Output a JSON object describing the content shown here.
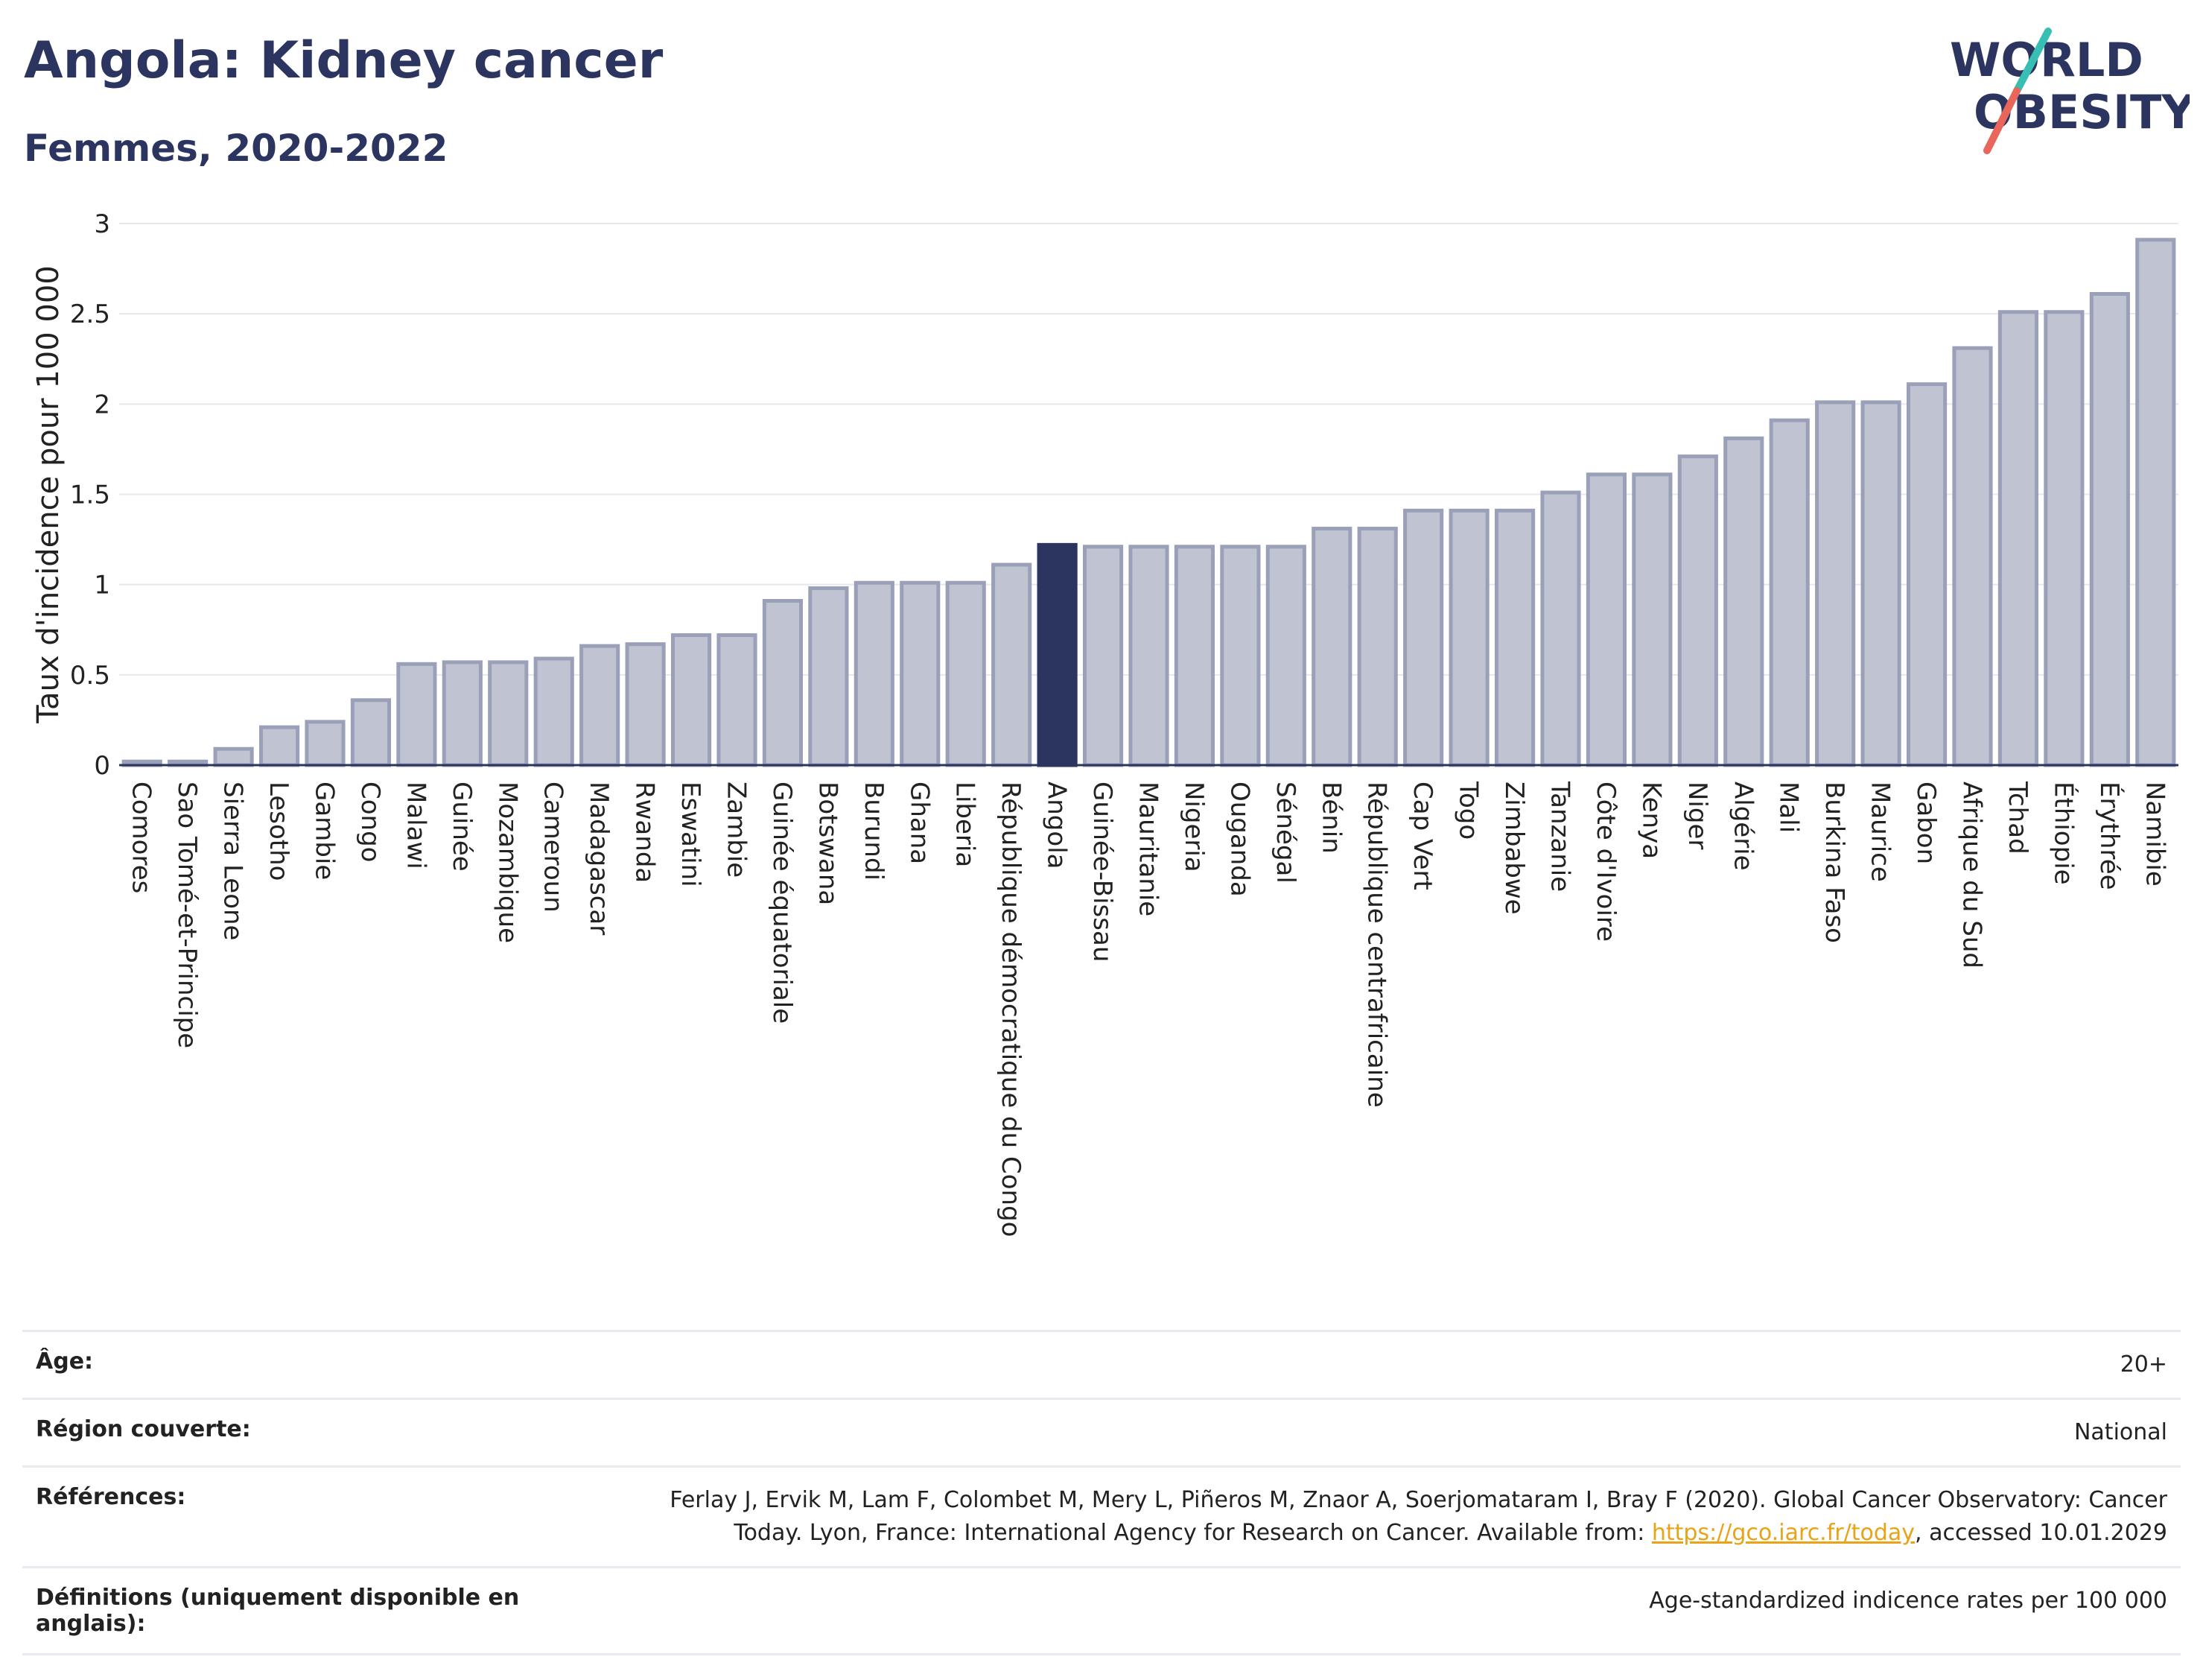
{
  "header": {
    "title": "Angola: Kidney cancer",
    "subtitle": "Femmes, 2020-2022"
  },
  "logo": {
    "line1": "WORLD",
    "line2": "OBESITY"
  },
  "colors": {
    "bar": "#bfc3d2",
    "bar_stroke": "#9aa0b8",
    "highlight": "#2b3560",
    "text": "#2b3560"
  },
  "chart_data": {
    "type": "bar",
    "ylabel": "Taux d'incidence pour 100 000",
    "xlabel": "",
    "ylim": [
      0,
      3
    ],
    "yticks": [
      "0",
      "0.5",
      "1",
      "1.5",
      "2",
      "2.5",
      "3"
    ],
    "highlight": "Angola",
    "grid": true,
    "categories": [
      "Comores",
      "Sao Tomé-et-Principe",
      "Sierra Leone",
      "Lesotho",
      "Gambie",
      "Congo",
      "Malawi",
      "Guinée",
      "Mozambique",
      "Cameroun",
      "Madagascar",
      "Rwanda",
      "Eswatini",
      "Zambie",
      "Guinée équatoriale",
      "Botswana",
      "Burundi",
      "Ghana",
      "Liberia",
      "République démocratique du Congo",
      "Angola",
      "Guinée-Bissau",
      "Mauritanie",
      "Nigeria",
      "Ouganda",
      "Sénégal",
      "Bénin",
      "République centrafricaine",
      "Cap Vert",
      "Togo",
      "Zimbabwe",
      "Tanzanie",
      "Côte d'Ivoire",
      "Kenya",
      "Niger",
      "Algérie",
      "Mali",
      "Burkina Faso",
      "Maurice",
      "Gabon",
      "Afrique du Sud",
      "Tchad",
      "Éthiopie",
      "Érythrée",
      "Namibie"
    ],
    "values": [
      0.02,
      0.02,
      0.09,
      0.21,
      0.24,
      0.36,
      0.56,
      0.57,
      0.57,
      0.59,
      0.66,
      0.67,
      0.72,
      0.72,
      0.91,
      0.98,
      1.01,
      1.01,
      1.01,
      1.11,
      1.22,
      1.21,
      1.21,
      1.21,
      1.21,
      1.21,
      1.31,
      1.31,
      1.41,
      1.41,
      1.41,
      1.51,
      1.61,
      1.61,
      1.71,
      1.81,
      1.91,
      2.01,
      2.01,
      2.11,
      2.31,
      2.51,
      2.51,
      2.61,
      2.91
    ]
  },
  "meta": {
    "age_label": "Âge:",
    "age_value": "20+",
    "region_label": "Région couverte:",
    "region_value": "National",
    "ref_label": "Références:",
    "ref_text1": "Ferlay J, Ervik M, Lam F, Colombet M, Mery L, Piñeros M, Znaor A, Soerjomataram I, Bray F (2020). Global Cancer Observatory: Cancer Today. Lyon, France: International Agency for Research on Cancer. Available from: ",
    "ref_link": "https://gco.iarc.fr/today",
    "ref_text2": ", accessed 10.01.2029",
    "def_label": "Définitions (uniquement disponible en anglais):",
    "def_value": "Age-standardized indicence rates per 100 000"
  }
}
